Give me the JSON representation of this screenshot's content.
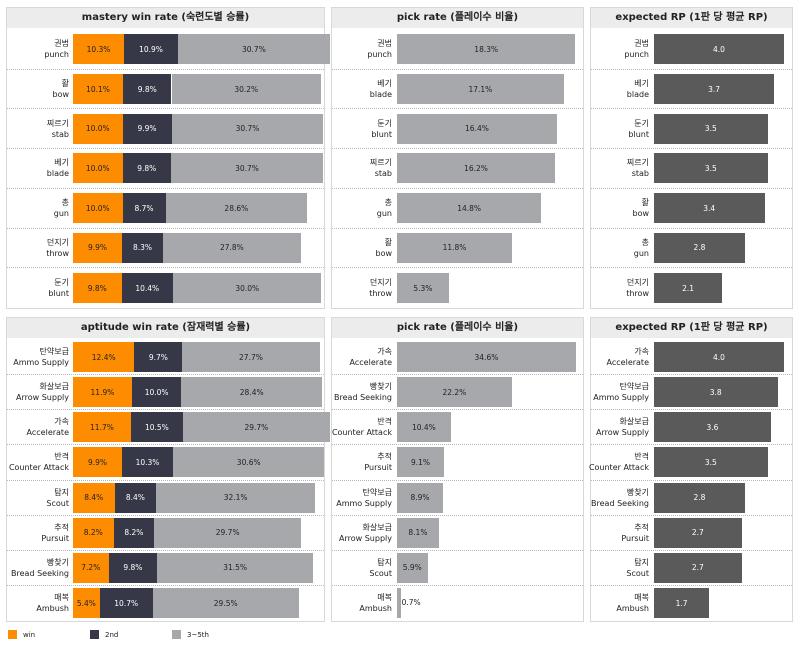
{
  "colors": {
    "win": "#fd8c00",
    "second": "#373847",
    "third": "#a6a8ab",
    "pick": "#a6a8ab",
    "rp": "#5a5a5a"
  },
  "legend": {
    "win": "win",
    "second": "2nd",
    "third": "3~5th"
  },
  "panels": [
    {
      "title": "mastery win rate (숙련도별 승률)",
      "type": "stacked"
    },
    {
      "title": "pick rate (플레이수 비율)",
      "type": "pick"
    },
    {
      "title": "expected RP (1판 당 평균 RP)",
      "type": "rp"
    },
    {
      "title": "aptitude win rate (잠재력별 승률)",
      "type": "stacked"
    },
    {
      "title": "pick rate (플레이수 비율)",
      "type": "pick"
    },
    {
      "title": "expected RP (1판 당 평균 RP)",
      "type": "rp"
    }
  ],
  "chart_data": [
    {
      "type": "bar",
      "stacked": true,
      "orientation": "horizontal",
      "title": "mastery win rate (숙련도별 승률)",
      "categories": [
        [
          "권법",
          "punch"
        ],
        [
          "활",
          "bow"
        ],
        [
          "찌르기",
          "stab"
        ],
        [
          "베기",
          "blade"
        ],
        [
          "총",
          "gun"
        ],
        [
          "던지기",
          "throw"
        ],
        [
          "둔기",
          "blunt"
        ]
      ],
      "series": [
        {
          "name": "win",
          "values": [
            10.3,
            10.1,
            10.0,
            10.0,
            10.0,
            9.9,
            9.8
          ]
        },
        {
          "name": "2nd",
          "values": [
            10.9,
            9.8,
            9.9,
            9.8,
            8.7,
            8.3,
            10.4
          ]
        },
        {
          "name": "3~5th",
          "values": [
            30.7,
            30.2,
            30.7,
            30.7,
            28.6,
            27.8,
            30.0
          ]
        }
      ]
    },
    {
      "type": "bar",
      "orientation": "horizontal",
      "title": "pick rate (플레이수 비율)",
      "categories": [
        [
          "권법",
          "punch"
        ],
        [
          "베기",
          "blade"
        ],
        [
          "둔기",
          "blunt"
        ],
        [
          "찌르기",
          "stab"
        ],
        [
          "총",
          "gun"
        ],
        [
          "활",
          "bow"
        ],
        [
          "던지기",
          "throw"
        ]
      ],
      "values": [
        18.3,
        17.1,
        16.4,
        16.2,
        14.8,
        11.8,
        5.3
      ],
      "unit": "%"
    },
    {
      "type": "bar",
      "orientation": "horizontal",
      "title": "expected RP (1판 당 평균 RP)",
      "categories": [
        [
          "권법",
          "punch"
        ],
        [
          "베기",
          "blade"
        ],
        [
          "둔기",
          "blunt"
        ],
        [
          "찌르기",
          "stab"
        ],
        [
          "활",
          "bow"
        ],
        [
          "총",
          "gun"
        ],
        [
          "던지기",
          "throw"
        ]
      ],
      "values": [
        4.0,
        3.7,
        3.5,
        3.5,
        3.4,
        2.8,
        2.1
      ]
    },
    {
      "type": "bar",
      "stacked": true,
      "orientation": "horizontal",
      "title": "aptitude win rate (잠재력별 승률)",
      "categories": [
        [
          "탄약보급",
          "Ammo Supply"
        ],
        [
          "화살보급",
          "Arrow Supply"
        ],
        [
          "가속",
          "Accelerate"
        ],
        [
          "반격",
          "Counter Attack"
        ],
        [
          "탐지",
          "Scout"
        ],
        [
          "추적",
          "Pursuit"
        ],
        [
          "빵찾기",
          "Bread Seeking"
        ],
        [
          "매복",
          "Ambush"
        ]
      ],
      "series": [
        {
          "name": "win",
          "values": [
            12.4,
            11.9,
            11.7,
            9.9,
            8.4,
            8.2,
            7.2,
            5.4
          ]
        },
        {
          "name": "2nd",
          "values": [
            9.7,
            10.0,
            10.5,
            10.3,
            8.4,
            8.2,
            9.8,
            10.7
          ]
        },
        {
          "name": "3~5th",
          "values": [
            27.7,
            28.4,
            29.7,
            30.6,
            32.1,
            29.7,
            31.5,
            29.5
          ]
        }
      ]
    },
    {
      "type": "bar",
      "orientation": "horizontal",
      "title": "pick rate (플레이수 비율)",
      "categories": [
        [
          "가속",
          "Accelerate"
        ],
        [
          "빵찾기",
          "Bread Seeking"
        ],
        [
          "반격",
          "Counter Attack"
        ],
        [
          "추적",
          "Pursuit"
        ],
        [
          "탄약보급",
          "Ammo Supply"
        ],
        [
          "화살보급",
          "Arrow Supply"
        ],
        [
          "탐지",
          "Scout"
        ],
        [
          "매복",
          "Ambush"
        ]
      ],
      "values": [
        34.6,
        22.2,
        10.4,
        9.1,
        8.9,
        8.1,
        5.9,
        0.7
      ],
      "unit": "%"
    },
    {
      "type": "bar",
      "orientation": "horizontal",
      "title": "expected RP (1판 당 평균 RP)",
      "categories": [
        [
          "가속",
          "Accelerate"
        ],
        [
          "탄약보급",
          "Ammo Supply"
        ],
        [
          "화살보급",
          "Arrow Supply"
        ],
        [
          "반격",
          "Counter Attack"
        ],
        [
          "빵찾기",
          "Bread Seeking"
        ],
        [
          "추적",
          "Pursuit"
        ],
        [
          "탐지",
          "Scout"
        ],
        [
          "매복",
          "Ambush"
        ]
      ],
      "values": [
        4.0,
        3.8,
        3.6,
        3.5,
        2.8,
        2.7,
        2.7,
        1.7
      ]
    }
  ]
}
